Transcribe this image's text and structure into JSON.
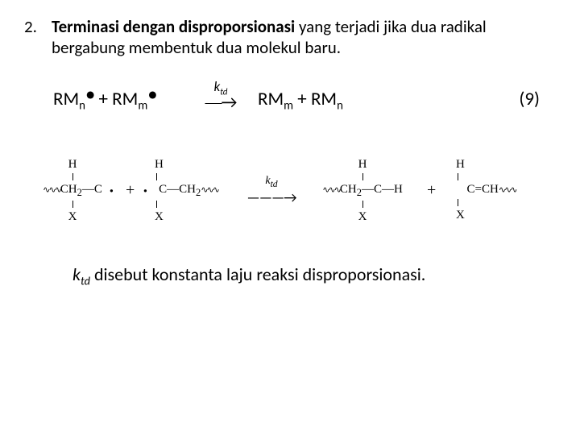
{
  "list": {
    "num": "2.",
    "line_html": "<span class=\"bold\">Terminasi dengan disproporsionasi</span> yang terjadi jika dua radikal bergabung membentuk dua molekul  baru."
  },
  "equation": {
    "left_html": "RM<span class=\"sub\">n</span><span class=\"dot\">•</span> + RM<span class=\"sub\">m</span><span class=\"dot\">•</span>",
    "arrow_label_html": "k<span class=\"sub\">td</span>",
    "arrow_glyph": "⎯⎯→",
    "right_html": "RM<span class=\"sub\">m</span> + RM<span class=\"sub\">n</span>",
    "num": "(9)"
  },
  "scheme": {
    "mol1": {
      "H": "H",
      "mid_html": "<span class=\"wavy\">∿∿∿</span>CH<sub>2</sub>—C",
      "X": "X",
      "rad": "·"
    },
    "plus1": "+",
    "mol2": {
      "H": "H",
      "mid_html": "C—CH<sub>2</sub><span class=\"wavy\">∿∿∿</span>",
      "X": "X",
      "rad": "·"
    },
    "arrow": {
      "label_html": "<i>k</i><sub>td</sub>",
      "glyph": "———→"
    },
    "mol3": {
      "H": "H",
      "mid_html": "<span class=\"wavy\">∿∿∿</span>CH<sub>2</sub>—C—H",
      "X": "X"
    },
    "plus2": "+",
    "mol4": {
      "H": "H",
      "mid_html": "C=CH<span class=\"wavy\">∿∿∿</span>",
      "X": "X"
    }
  },
  "footer_html": "<span class=\"it\">k<span class=\"sub\">td</span></span> disebut konstanta laju reaksi disproporsionasi."
}
